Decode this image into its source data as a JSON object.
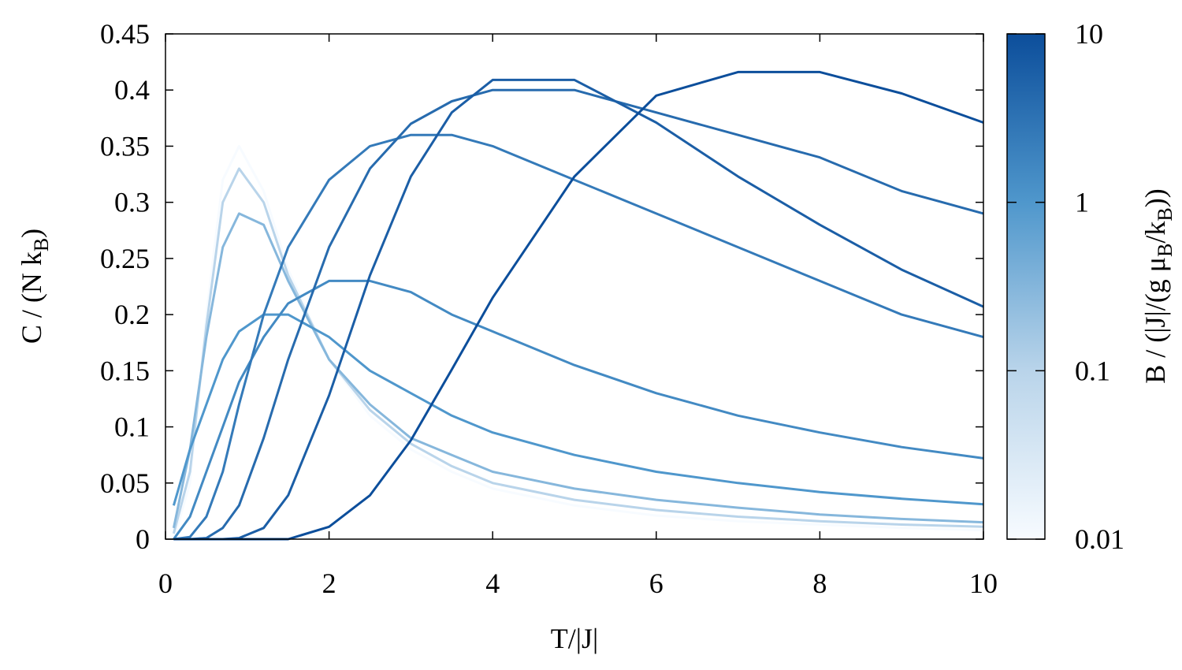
{
  "chart_data": {
    "type": "line",
    "xlabel": "T/|J|",
    "ylabel_parts": [
      "C / (N k",
      "B",
      ")"
    ],
    "x": [
      0.1,
      0.3,
      0.5,
      0.7,
      0.9,
      1.2,
      1.5,
      2,
      2.5,
      3,
      3.5,
      4,
      5,
      6,
      7,
      8,
      9,
      10
    ],
    "xlim": [
      0,
      10
    ],
    "xticks": [
      0,
      2,
      4,
      6,
      8,
      10
    ],
    "ylim": [
      0,
      0.45
    ],
    "yticks": [
      0,
      0.05,
      0.1,
      0.15,
      0.2,
      0.25,
      0.3,
      0.35,
      0.4,
      0.45
    ],
    "series": [
      {
        "z": 0.01,
        "values": [
          0.0,
          0.05,
          0.2,
          0.32,
          0.35,
          0.31,
          0.24,
          0.16,
          0.11,
          0.08,
          0.06,
          0.045,
          0.03,
          0.021,
          0.016,
          0.013,
          0.01,
          0.008
        ]
      },
      {
        "z": 0.1,
        "values": [
          0.005,
          0.06,
          0.19,
          0.3,
          0.33,
          0.3,
          0.235,
          0.16,
          0.115,
          0.085,
          0.065,
          0.05,
          0.035,
          0.026,
          0.02,
          0.016,
          0.013,
          0.011
        ]
      },
      {
        "z": 0.3,
        "values": [
          0.01,
          0.08,
          0.18,
          0.26,
          0.29,
          0.28,
          0.23,
          0.16,
          0.12,
          0.09,
          0.075,
          0.06,
          0.045,
          0.035,
          0.028,
          0.022,
          0.018,
          0.015
        ]
      },
      {
        "z": 1,
        "values": [
          0.03,
          0.08,
          0.12,
          0.16,
          0.185,
          0.2,
          0.2,
          0.18,
          0.15,
          0.13,
          0.11,
          0.095,
          0.075,
          0.06,
          0.05,
          0.042,
          0.036,
          0.031
        ]
      },
      {
        "z": 1.5,
        "values": [
          0.0,
          0.02,
          0.06,
          0.1,
          0.14,
          0.18,
          0.21,
          0.23,
          0.23,
          0.22,
          0.2,
          0.185,
          0.155,
          0.13,
          0.11,
          0.095,
          0.082,
          0.072
        ]
      },
      {
        "z": 2.5,
        "values": [
          0.0,
          0.002,
          0.02,
          0.06,
          0.12,
          0.2,
          0.26,
          0.32,
          0.35,
          0.36,
          0.36,
          0.35,
          0.32,
          0.29,
          0.26,
          0.23,
          0.2,
          0.18
        ]
      },
      {
        "z": 4,
        "values": [
          0.0,
          0.0,
          0.001,
          0.01,
          0.03,
          0.09,
          0.16,
          0.26,
          0.33,
          0.37,
          0.39,
          0.4,
          0.4,
          0.38,
          0.36,
          0.34,
          0.31,
          0.29
        ]
      },
      {
        "z": 6,
        "values": [
          0.0,
          0.0,
          0.0,
          0.0,
          0.001,
          0.01,
          0.039,
          0.128,
          0.235,
          0.323,
          0.38,
          0.409,
          0.409,
          0.371,
          0.323,
          0.28,
          0.24,
          0.207
        ]
      },
      {
        "z": 10,
        "values": [
          0.0,
          0.0,
          0.0,
          0.0,
          0.0,
          0.0,
          0.0,
          0.011,
          0.039,
          0.088,
          0.151,
          0.215,
          0.323,
          0.395,
          0.416,
          0.416,
          0.397,
          0.371
        ]
      }
    ],
    "colorbar": {
      "log": true,
      "zlim": [
        0.01,
        10
      ],
      "zticks": [
        0.01,
        0.1,
        1,
        10
      ],
      "colors": [
        "#f7fbff",
        "#b9d4ea",
        "#4f97cc",
        "#0c4e9b"
      ],
      "label_parts": [
        "B / (|J|/(g μ",
        "B",
        "/k",
        "B",
        "))"
      ]
    }
  }
}
